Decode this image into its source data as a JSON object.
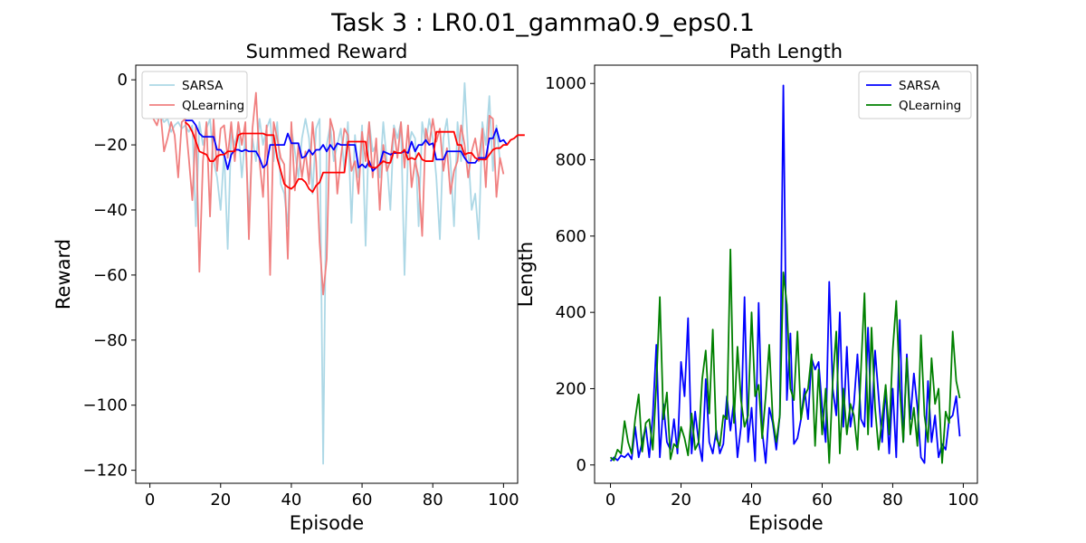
{
  "figure": {
    "suptitle": "Task 3 : LR0.01_gamma0.9_eps0.1"
  },
  "chart_data": [
    {
      "type": "line",
      "title": "Summed Reward",
      "xlabel": "Episode",
      "ylabel": "Reward",
      "xlim": [
        -4,
        104
      ],
      "ylim": [
        -124,
        4.5
      ],
      "xticks": [
        0,
        20,
        40,
        60,
        80,
        100
      ],
      "yticks": [
        0,
        -20,
        -40,
        -60,
        -80,
        -100,
        -120
      ],
      "xtick_labels": [
        "0",
        "20",
        "40",
        "60",
        "80",
        "100"
      ],
      "ytick_labels": [
        "0",
        "−20",
        "−40",
        "−60",
        "−80",
        "−100",
        "−120"
      ],
      "grid": false,
      "legend": "top-left",
      "series": [
        {
          "name": "SARSA",
          "color": "#add8e6",
          "in_legend": true,
          "x_start": 0,
          "values": [
            -10,
            -11,
            -12,
            -11,
            -13,
            -12,
            -16,
            -14,
            -13,
            -15,
            -14,
            -16,
            -14,
            -45,
            -13,
            -20,
            -15,
            -12,
            -25,
            -30,
            -40,
            -22,
            -52,
            -16,
            -20,
            -15,
            -30,
            -17,
            -42,
            -18,
            -25,
            -12,
            -20,
            -15,
            -12,
            -25,
            -13,
            -32,
            -35,
            -45,
            -15,
            -22,
            -30,
            -18,
            -12,
            -18,
            -35,
            -15,
            -12,
            -118,
            -20,
            -14,
            -25,
            -20,
            -15,
            -28,
            -13,
            -44,
            -17,
            -30,
            -14,
            -51,
            -13,
            -22,
            -20,
            -30,
            -13,
            -25,
            -40,
            -14,
            -18,
            -13,
            -60,
            -22,
            -16,
            -18,
            -45,
            -13,
            -20,
            -12,
            -18,
            -30,
            -49,
            -18,
            -12,
            -25,
            -45,
            -13,
            -25,
            -1,
            -22,
            -40,
            -35,
            -49,
            -13,
            -20,
            -5,
            -28,
            -14,
            -25
          ]
        },
        {
          "name": "QLearning",
          "color": "#f08080",
          "in_legend": true,
          "x_start": 0,
          "values": [
            -10,
            -12,
            -14,
            -10,
            -22,
            -18,
            -13,
            -17,
            -30,
            -13,
            -12,
            -24,
            -37,
            -14,
            -59,
            -25,
            -13,
            -42,
            -12,
            -28,
            -15,
            -14,
            -24,
            -13,
            -25,
            -13,
            -20,
            -13,
            -49,
            -15,
            -4,
            -25,
            -36,
            -14,
            -60,
            -13,
            -18,
            -24,
            -26,
            -55,
            -13,
            -34,
            -20,
            -30,
            -22,
            -32,
            -13,
            -25,
            -50,
            -66,
            -55,
            -12,
            -16,
            -35,
            -24,
            -15,
            -17,
            -28,
            -25,
            -35,
            -16,
            -25,
            -13,
            -30,
            -18,
            -40,
            -20,
            -28,
            -25,
            -15,
            -24,
            -13,
            -27,
            -14,
            -33,
            -25,
            -30,
            -48,
            -15,
            -20,
            -12,
            -19,
            -15,
            -28,
            -21,
            -35,
            -28,
            -25,
            -14,
            -20,
            -30,
            -22,
            -18,
            -25,
            -15,
            -33,
            -11,
            -12,
            -36,
            -24,
            -29
          ]
        },
        {
          "name": "",
          "color": "#0000ff",
          "in_legend": false,
          "x_start": 10,
          "values": [
            -12.5,
            -12.5,
            -12.5,
            -14,
            -16.5,
            -17.5,
            -17.5,
            -17.5,
            -17.5,
            -21.5,
            -21.5,
            -23,
            -27.5,
            -23,
            -21.5,
            -21.5,
            -22,
            -21.5,
            -22,
            -22,
            -22,
            -24,
            -27,
            -26,
            -20,
            -20,
            -20,
            -20,
            -20,
            -16.5,
            -19.5,
            -19.5,
            -19.5,
            -24,
            -23.5,
            -21.5,
            -23,
            -21.5,
            -21.5,
            -20,
            -22,
            -20,
            -21.5,
            -19.5,
            -20,
            -20,
            -20,
            -20,
            -20,
            -27,
            -26,
            -27,
            -25,
            -28,
            -27,
            -26,
            -22,
            -22.5,
            -23,
            -22.5,
            -22.5,
            -22.5,
            -22,
            -22.5,
            -19,
            -22,
            -20,
            -20,
            -18.5,
            -20,
            -19.5,
            -24.5,
            -24.5,
            -24.5,
            -22,
            -22,
            -22,
            -22,
            -22,
            -24,
            -25.5,
            -25.5,
            -25.5,
            -24,
            -24,
            -24,
            -18,
            -18,
            -15,
            -19,
            -18.5,
            -20
          ]
        },
        {
          "name": "",
          "color": "#ff0000",
          "in_legend": false,
          "x_start": 10,
          "values": [
            -13,
            -14,
            -16,
            -19,
            -22,
            -22.5,
            -23,
            -25,
            -25,
            -23.5,
            -23,
            -23,
            -22,
            -22,
            -22,
            -17,
            -16.5,
            -16.5,
            -16.5,
            -16.5,
            -16.5,
            -16.5,
            -16.5,
            -17,
            -17,
            -17,
            -24,
            -28,
            -32,
            -33,
            -33.5,
            -32.5,
            -30.5,
            -30.5,
            -31.5,
            -33.5,
            -34.5,
            -32.5,
            -31.5,
            -28.5,
            -28.5,
            -28.5,
            -28.5,
            -28.5,
            -28.5,
            -28.5,
            -19,
            -19,
            -19,
            -19,
            -19,
            -19,
            -26.5,
            -27,
            -27,
            -26,
            -25,
            -25.5,
            -25.5,
            -22,
            -22.5,
            -22.5,
            -21.5,
            -24.5,
            -24,
            -24.5,
            -22.5,
            -24.5,
            -25,
            -25,
            -25,
            -16,
            -16,
            -16,
            -16,
            -16,
            -16,
            -20,
            -20,
            -23,
            -22.5,
            -22.5,
            -24,
            -24.5,
            -24.5,
            -24.5,
            -23,
            -21.5,
            -21,
            -21,
            -20,
            -20,
            -18.5,
            -18,
            -17,
            -17,
            -17
          ]
        }
      ]
    },
    {
      "type": "line",
      "title": "Path Length",
      "xlabel": "Episode",
      "ylabel": "Length",
      "xlim": [
        -4.5,
        104
      ],
      "ylim": [
        -48,
        1048
      ],
      "xticks": [
        0,
        20,
        40,
        60,
        80,
        100
      ],
      "yticks": [
        0,
        200,
        400,
        600,
        800,
        1000
      ],
      "xtick_labels": [
        "0",
        "20",
        "40",
        "60",
        "80",
        "100"
      ],
      "ytick_labels": [
        "0",
        "200",
        "400",
        "600",
        "800",
        "1000"
      ],
      "grid": false,
      "legend": "top-right",
      "series": [
        {
          "name": "SARSA",
          "color": "#0000ff",
          "in_legend": true,
          "x_start": 0,
          "values": [
            10,
            20,
            12,
            25,
            20,
            30,
            15,
            100,
            20,
            60,
            100,
            20,
            130,
            315,
            20,
            160,
            60,
            40,
            120,
            30,
            270,
            180,
            385,
            30,
            140,
            60,
            10,
            225,
            60,
            30,
            90,
            30,
            55,
            180,
            90,
            170,
            20,
            100,
            440,
            60,
            150,
            10,
            425,
            90,
            5,
            150,
            110,
            40,
            130,
            995,
            170,
            345,
            55,
            70,
            120,
            200,
            120,
            280,
            250,
            270,
            150,
            60,
            480,
            200,
            130,
            400,
            100,
            310,
            100,
            160,
            290,
            120,
            100,
            360,
            100,
            300,
            180,
            60,
            200,
            30,
            200,
            20,
            380,
            60,
            290,
            120,
            240,
            150,
            20,
            5,
            220,
            60,
            130,
            20,
            55,
            40,
            120,
            130,
            180,
            75
          ]
        },
        {
          "name": "QLearning",
          "color": "#008000",
          "in_legend": true,
          "x_start": 0,
          "values": [
            20,
            12,
            40,
            30,
            115,
            60,
            30,
            120,
            185,
            35,
            110,
            120,
            40,
            210,
            440,
            120,
            190,
            15,
            55,
            45,
            100,
            70,
            25,
            135,
            40,
            60,
            225,
            300,
            135,
            355,
            70,
            50,
            130,
            120,
            565,
            110,
            310,
            170,
            100,
            130,
            400,
            180,
            210,
            70,
            180,
            315,
            120,
            60,
            130,
            505,
            420,
            200,
            170,
            350,
            120,
            180,
            200,
            290,
            50,
            250,
            80,
            200,
            5,
            220,
            350,
            30,
            200,
            80,
            160,
            130,
            40,
            250,
            450,
            80,
            360,
            150,
            40,
            120,
            210,
            80,
            300,
            430,
            200,
            60,
            280,
            80,
            150,
            50,
            340,
            130,
            60,
            280,
            160,
            200,
            5,
            140,
            110,
            350,
            220,
            175
          ]
        }
      ]
    }
  ]
}
